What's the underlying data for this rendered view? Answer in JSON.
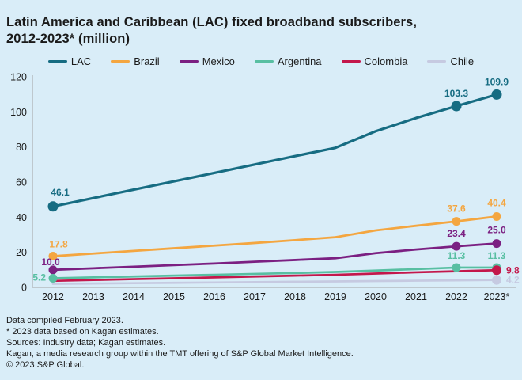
{
  "page": {
    "background": "#d9edf8",
    "text_color": "#1a1a1a",
    "axis_color": "#a3a3a3"
  },
  "title": {
    "line1": "Latin America and Caribbean (LAC) fixed broadband subscribers,",
    "line2": "2012-2023* (million)"
  },
  "chart_data": {
    "type": "line",
    "title": "Latin America and Caribbean (LAC) fixed broadband subscribers, 2012-2023* (million)",
    "x": [
      2012,
      2013,
      2014,
      2015,
      2016,
      2017,
      2018,
      2019,
      2020,
      2021,
      2022,
      2023
    ],
    "x_tick_labels": [
      "2012",
      "2013",
      "2014",
      "2015",
      "2016",
      "2017",
      "2018",
      "2019",
      "2020",
      "2021",
      "2022",
      "2023*"
    ],
    "ylim": [
      0,
      120
    ],
    "y_ticks": [
      0,
      20,
      40,
      60,
      80,
      100,
      120
    ],
    "grid": false,
    "legend_position": "top",
    "series": [
      {
        "name": "LAC",
        "color": "#166c82",
        "stroke_width": 3.2,
        "marker_r": 6.5,
        "values": [
          46.1,
          50.9,
          55.7,
          60.4,
          65.2,
          70.0,
          74.8,
          79.5,
          89.0,
          96.5,
          103.3,
          109.9
        ],
        "labeled_points": [
          {
            "year": 2012,
            "label": "46.1",
            "dx": 9,
            "dy": -14,
            "anchor": "middle"
          },
          {
            "year": 2022,
            "label": "103.3",
            "dx": 0,
            "dy": -12,
            "anchor": "middle"
          },
          {
            "year": 2023,
            "label": "109.9",
            "dx": 0,
            "dy": -12,
            "anchor": "middle"
          }
        ]
      },
      {
        "name": "Brazil",
        "color": "#f4a640",
        "stroke_width": 2.8,
        "marker_r": 5.5,
        "values": [
          17.8,
          19.3,
          20.8,
          22.3,
          23.8,
          25.3,
          26.9,
          28.6,
          32.5,
          35.1,
          37.6,
          40.4
        ],
        "labeled_points": [
          {
            "year": 2012,
            "label": "17.8",
            "dx": 7,
            "dy": -11,
            "anchor": "middle"
          },
          {
            "year": 2022,
            "label": "37.6",
            "dx": 0,
            "dy": -12,
            "anchor": "middle"
          },
          {
            "year": 2023,
            "label": "40.4",
            "dx": 0,
            "dy": -13,
            "anchor": "middle"
          }
        ]
      },
      {
        "name": "Mexico",
        "color": "#7b2082",
        "stroke_width": 2.8,
        "marker_r": 5.5,
        "values": [
          10.0,
          10.9,
          11.8,
          12.7,
          13.6,
          14.6,
          15.6,
          16.6,
          19.5,
          21.6,
          23.4,
          25.0
        ],
        "labeled_points": [
          {
            "year": 2012,
            "label": "10.0",
            "dx": -3,
            "dy": -6,
            "anchor": "middle"
          },
          {
            "year": 2022,
            "label": "23.4",
            "dx": 0,
            "dy": -12,
            "anchor": "middle"
          },
          {
            "year": 2023,
            "label": "25.0",
            "dx": 0,
            "dy": -13,
            "anchor": "middle"
          }
        ]
      },
      {
        "name": "Argentina",
        "color": "#58bfa2",
        "stroke_width": 2.7,
        "marker_r": 5.5,
        "values": [
          5.2,
          5.7,
          6.2,
          6.7,
          7.2,
          7.7,
          8.2,
          8.8,
          9.6,
          10.4,
          11.3,
          11.3
        ],
        "labeled_points": [
          {
            "year": 2012,
            "label": "5.2",
            "dx": -9,
            "dy": 3,
            "anchor": "end"
          },
          {
            "year": 2022,
            "label": "11.3",
            "dx": 0,
            "dy": -11,
            "anchor": "middle"
          },
          {
            "year": 2023,
            "label": "11.3",
            "dx": 0,
            "dy": -11,
            "anchor": "middle"
          }
        ]
      },
      {
        "name": "Colombia",
        "color": "#c3174b",
        "stroke_width": 2.7,
        "marker_r": 6,
        "values": [
          3.7,
          4.2,
          4.7,
          5.2,
          5.7,
          6.2,
          6.7,
          7.2,
          7.9,
          8.6,
          9.2,
          9.8
        ],
        "labeled_points": [
          {
            "year": 2023,
            "label": "9.8",
            "dx": 12,
            "dy": 4,
            "anchor": "start"
          }
        ]
      },
      {
        "name": "Chile",
        "color": "#c6cae1",
        "stroke_width": 2.7,
        "marker_r": 6,
        "values": [
          2.0,
          2.2,
          2.4,
          2.6,
          2.8,
          3.0,
          3.2,
          3.4,
          3.6,
          3.8,
          4.0,
          4.2
        ],
        "labeled_points": [
          {
            "year": 2023,
            "label": "4.2",
            "dx": 12,
            "dy": 4,
            "anchor": "start"
          }
        ]
      }
    ]
  },
  "footnotes": [
    "Data compiled February 2023.",
    "* 2023 data based on Kagan estimates.",
    "Sources: Industry data; Kagan estimates.",
    "Kagan, a media research group within the TMT offering of S&P Global Market Intelligence.",
    "© 2023 S&P Global."
  ]
}
